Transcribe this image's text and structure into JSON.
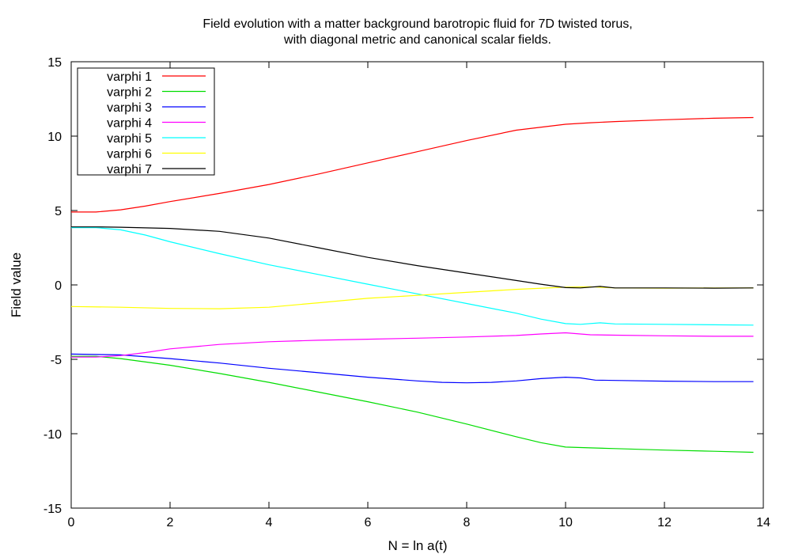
{
  "chart_data": {
    "type": "line",
    "title": [
      "Field evolution with a matter background barotropic fluid for 7D twisted torus,",
      "with diagonal metric and canonical scalar fields."
    ],
    "xlabel": "N = ln a(t)",
    "ylabel": "Field value",
    "xlim": [
      0,
      14
    ],
    "ylim": [
      -15,
      15
    ],
    "xticks": [
      0,
      2,
      4,
      6,
      8,
      10,
      12,
      14
    ],
    "yticks": [
      -15,
      -10,
      -5,
      0,
      5,
      10,
      15
    ],
    "grid": false,
    "legend": "top-left",
    "series": [
      {
        "name": "varphi 1",
        "color": "#ff0000",
        "x": [
          0,
          0.5,
          1,
          1.5,
          2,
          3,
          4,
          5,
          6,
          7,
          8,
          9,
          10,
          10.5,
          11,
          12,
          13,
          13.8
        ],
        "y": [
          4.9,
          4.9,
          5.05,
          5.3,
          5.6,
          6.15,
          6.75,
          7.45,
          8.2,
          8.95,
          9.7,
          10.4,
          10.8,
          10.9,
          10.98,
          11.1,
          11.2,
          11.25
        ]
      },
      {
        "name": "varphi 2",
        "color": "#00dd00",
        "x": [
          0,
          0.5,
          1,
          2,
          3,
          4,
          5,
          6,
          7,
          8,
          9,
          9.5,
          10,
          10.5,
          11,
          12,
          13,
          13.8
        ],
        "y": [
          -4.8,
          -4.8,
          -4.95,
          -5.4,
          -5.95,
          -6.55,
          -7.2,
          -7.85,
          -8.55,
          -9.35,
          -10.2,
          -10.6,
          -10.9,
          -10.95,
          -11.0,
          -11.1,
          -11.18,
          -11.25
        ]
      },
      {
        "name": "varphi 3",
        "color": "#0000ff",
        "x": [
          0,
          1,
          2,
          3,
          4,
          5,
          6,
          7,
          7.5,
          8,
          8.5,
          9,
          9.5,
          10,
          10.3,
          10.6,
          11,
          12,
          13,
          13.8
        ],
        "y": [
          -4.65,
          -4.7,
          -4.95,
          -5.25,
          -5.6,
          -5.9,
          -6.2,
          -6.45,
          -6.55,
          -6.58,
          -6.55,
          -6.45,
          -6.3,
          -6.2,
          -6.25,
          -6.4,
          -6.42,
          -6.47,
          -6.5,
          -6.5
        ]
      },
      {
        "name": "varphi 4",
        "color": "#ff00ff",
        "x": [
          0,
          0.5,
          1,
          1.5,
          2,
          3,
          4,
          5,
          6,
          7,
          8,
          9,
          9.5,
          10,
          10.5,
          11,
          12,
          13,
          13.8
        ],
        "y": [
          -4.85,
          -4.85,
          -4.75,
          -4.55,
          -4.3,
          -4.0,
          -3.82,
          -3.72,
          -3.65,
          -3.58,
          -3.5,
          -3.4,
          -3.3,
          -3.22,
          -3.35,
          -3.38,
          -3.42,
          -3.45,
          -3.45
        ]
      },
      {
        "name": "varphi 5",
        "color": "#00ffff",
        "x": [
          0,
          0.5,
          1,
          1.5,
          2,
          3,
          4,
          5,
          6,
          7,
          8,
          9,
          9.5,
          10,
          10.3,
          10.7,
          11,
          12,
          13,
          13.8
        ],
        "y": [
          3.85,
          3.85,
          3.7,
          3.35,
          2.9,
          2.1,
          1.35,
          0.7,
          0.05,
          -0.6,
          -1.25,
          -1.9,
          -2.3,
          -2.6,
          -2.65,
          -2.55,
          -2.62,
          -2.65,
          -2.68,
          -2.7
        ]
      },
      {
        "name": "varphi 6",
        "color": "#ffff00",
        "x": [
          0,
          1,
          2,
          3,
          4,
          5,
          6,
          7,
          8,
          9,
          10,
          10.5,
          11,
          12,
          13,
          13.8
        ],
        "y": [
          -1.45,
          -1.5,
          -1.58,
          -1.6,
          -1.5,
          -1.2,
          -0.9,
          -0.7,
          -0.5,
          -0.3,
          -0.15,
          -0.12,
          -0.2,
          -0.22,
          -0.2,
          -0.2
        ]
      },
      {
        "name": "varphi 7",
        "color": "#000000",
        "x": [
          0,
          0.5,
          1,
          2,
          3,
          4,
          5,
          6,
          7,
          8,
          9,
          9.5,
          10,
          10.3,
          10.7,
          11,
          12,
          13,
          13.8
        ],
        "y": [
          3.9,
          3.9,
          3.88,
          3.8,
          3.6,
          3.15,
          2.5,
          1.85,
          1.3,
          0.8,
          0.3,
          0.05,
          -0.18,
          -0.2,
          -0.1,
          -0.2,
          -0.2,
          -0.22,
          -0.2
        ]
      }
    ]
  }
}
